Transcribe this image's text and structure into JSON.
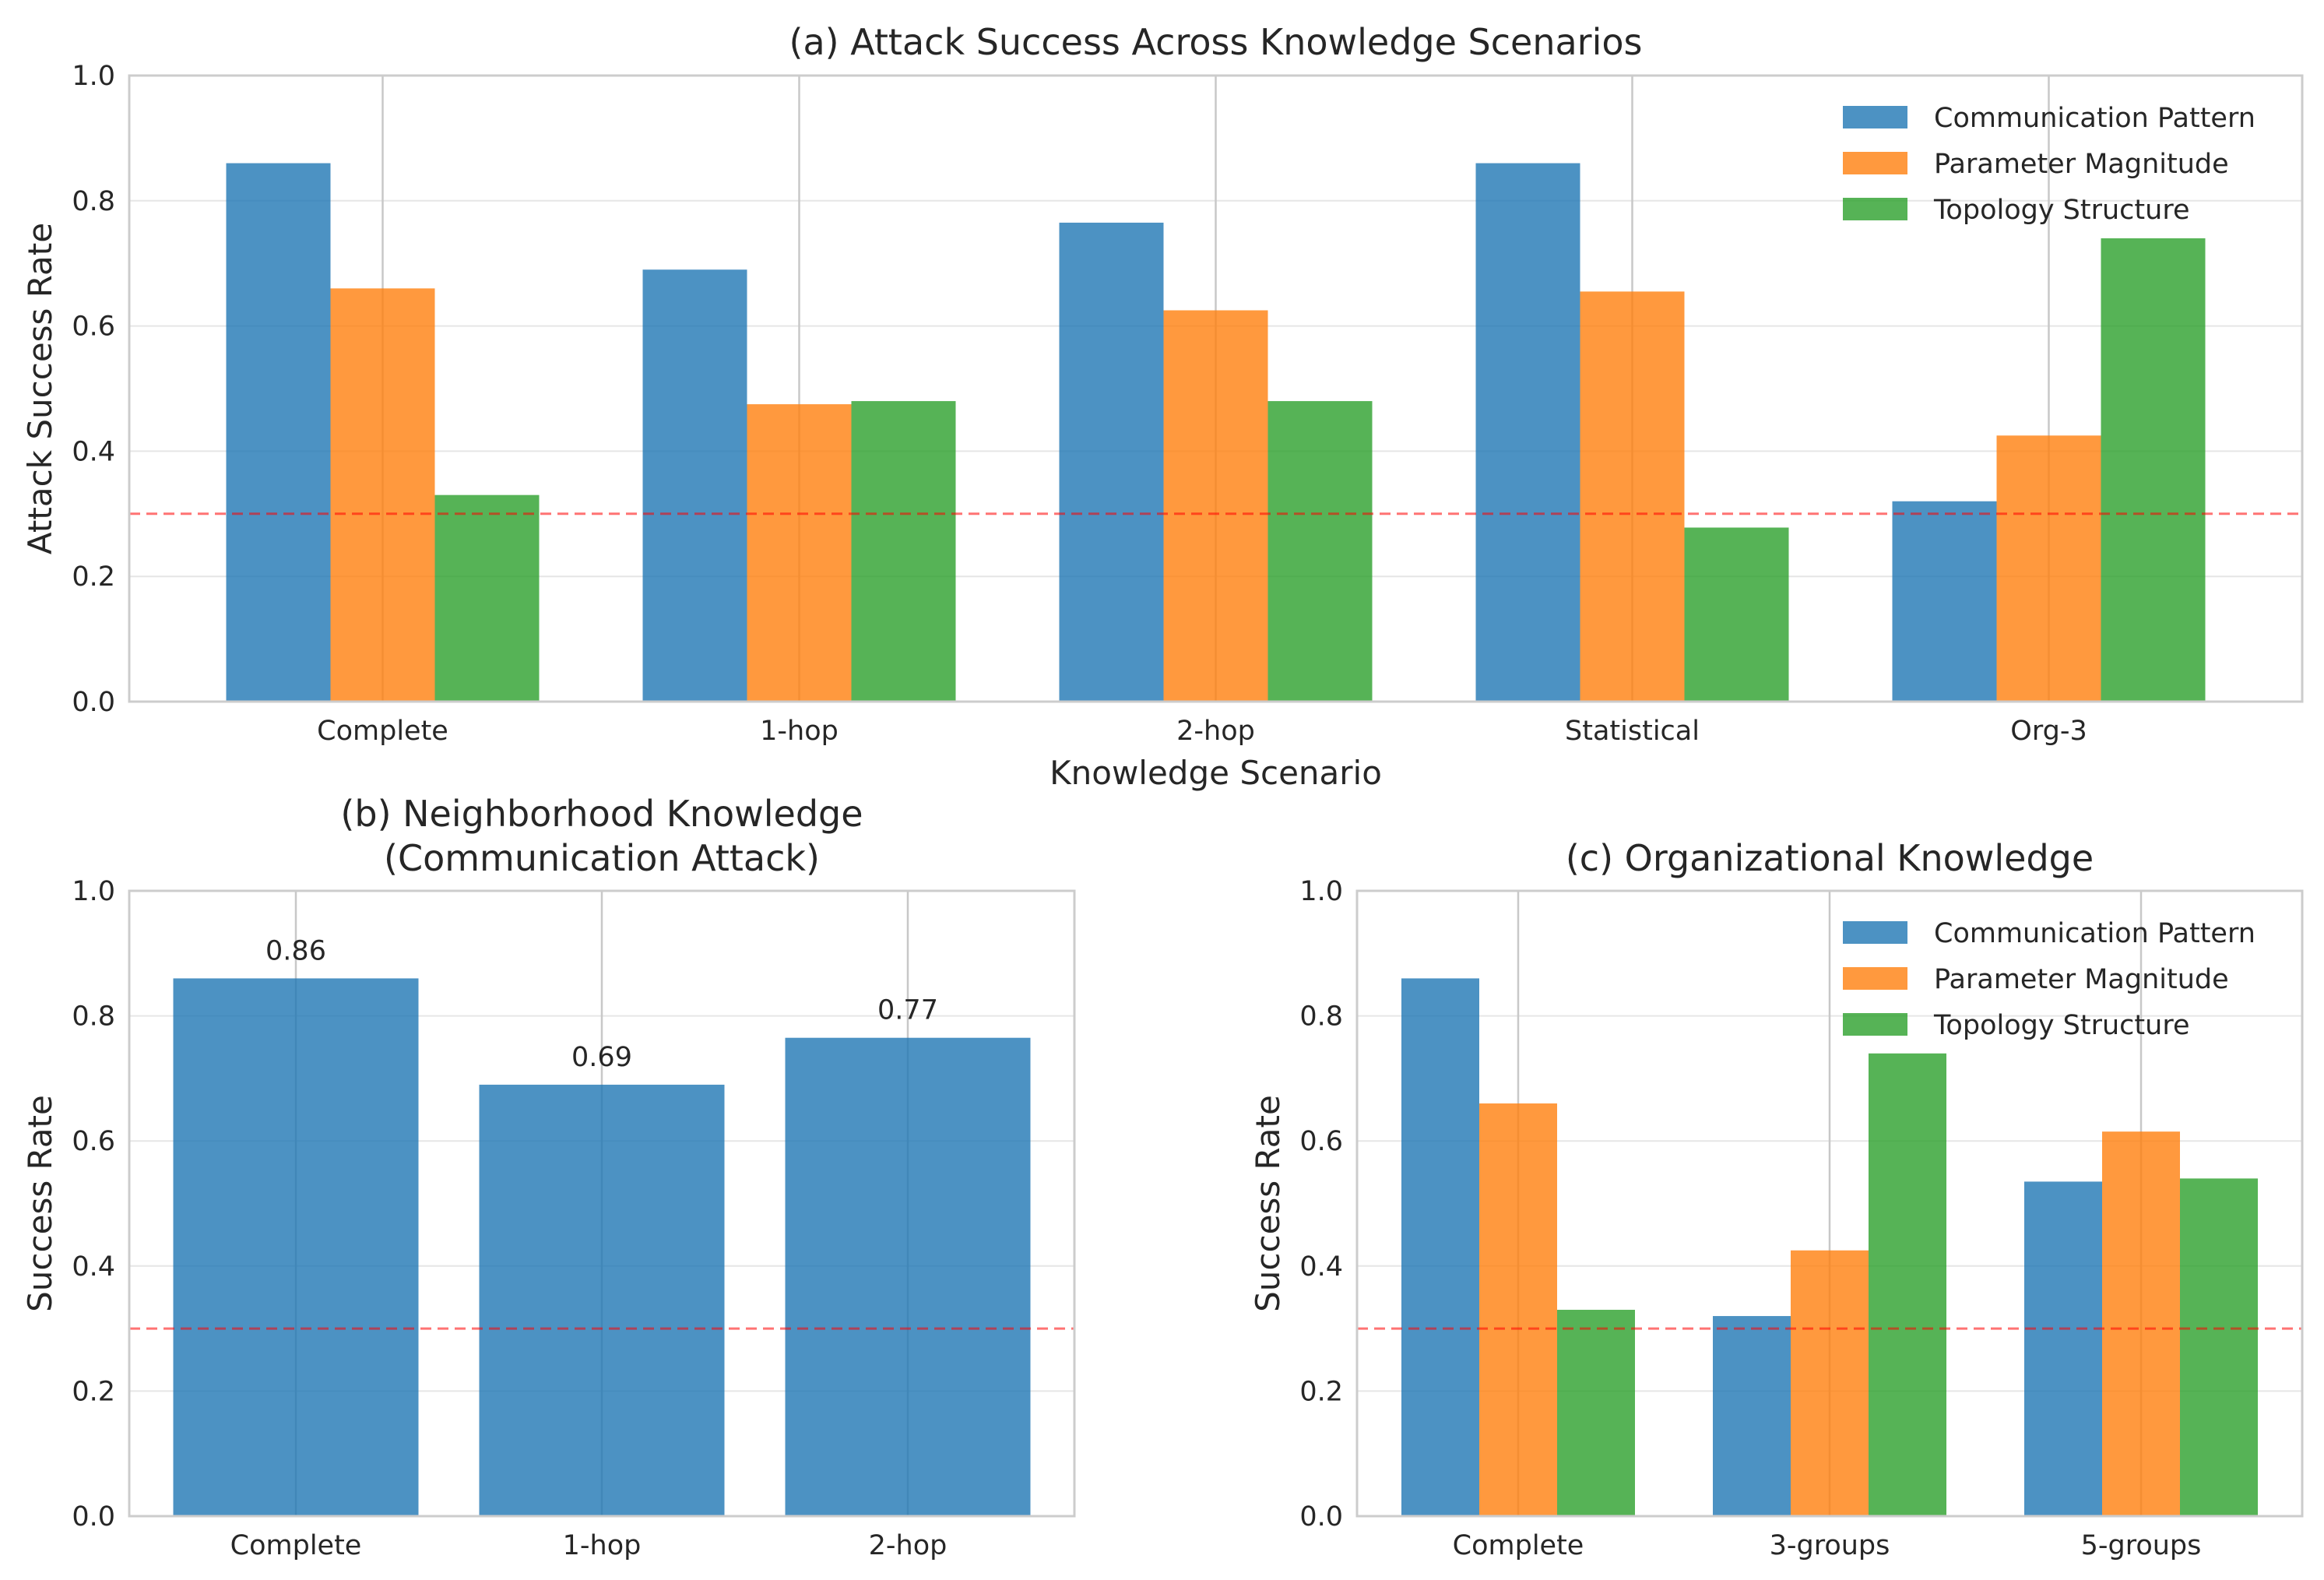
{
  "colors": {
    "communication": "#1f77b4",
    "parameter": "#ff7f0e",
    "topology": "#2ca02c",
    "threshold": "#ff0000",
    "grid": "#b0b0b0",
    "spine": "#cccccc"
  },
  "chart_data": [
    {
      "id": "a",
      "type": "bar",
      "title": "(a) Attack Success Across Knowledge Scenarios",
      "xlabel": "Knowledge Scenario",
      "ylabel": "Attack Success Rate",
      "ylim": [
        0,
        1
      ],
      "yticks": [
        "0.0",
        "0.2",
        "0.4",
        "0.6",
        "0.8",
        "1.0"
      ],
      "categories": [
        "Complete",
        "1-hop",
        "2-hop",
        "Statistical",
        "Org-3"
      ],
      "series": [
        {
          "name": "Communication Pattern",
          "color_key": "communication",
          "values": [
            0.86,
            0.69,
            0.765,
            0.86,
            0.32
          ]
        },
        {
          "name": "Parameter Magnitude",
          "color_key": "parameter",
          "values": [
            0.66,
            0.475,
            0.625,
            0.655,
            0.425
          ]
        },
        {
          "name": "Topology Structure",
          "color_key": "topology",
          "values": [
            0.33,
            0.48,
            0.48,
            0.278,
            0.74
          ]
        }
      ],
      "threshold": 0.3,
      "legend": "top-right",
      "grid": true
    },
    {
      "id": "b",
      "type": "bar",
      "title": [
        "(b) Neighborhood Knowledge",
        "(Communication Attack)"
      ],
      "xlabel": "",
      "ylabel": "Success Rate",
      "ylim": [
        0,
        1
      ],
      "yticks": [
        "0.0",
        "0.2",
        "0.4",
        "0.6",
        "0.8",
        "1.0"
      ],
      "categories": [
        "Complete",
        "1-hop",
        "2-hop"
      ],
      "series": [
        {
          "color_key": "communication",
          "values": [
            0.86,
            0.69,
            0.765
          ]
        }
      ],
      "data_labels": [
        "0.86",
        "0.69",
        "0.77"
      ],
      "threshold": 0.3,
      "grid": true
    },
    {
      "id": "c",
      "type": "bar",
      "title": "(c) Organizational Knowledge",
      "xlabel": "",
      "ylabel": "Success Rate",
      "ylim": [
        0,
        1
      ],
      "yticks": [
        "0.0",
        "0.2",
        "0.4",
        "0.6",
        "0.8",
        "1.0"
      ],
      "categories": [
        "Complete",
        "3-groups",
        "5-groups"
      ],
      "series": [
        {
          "name": "Communication Pattern",
          "color_key": "communication",
          "values": [
            0.86,
            0.32,
            0.535
          ]
        },
        {
          "name": "Parameter Magnitude",
          "color_key": "parameter",
          "values": [
            0.66,
            0.425,
            0.615
          ]
        },
        {
          "name": "Topology Structure",
          "color_key": "topology",
          "values": [
            0.33,
            0.74,
            0.54
          ]
        }
      ],
      "threshold": 0.3,
      "legend": "top-right",
      "grid": true
    }
  ]
}
